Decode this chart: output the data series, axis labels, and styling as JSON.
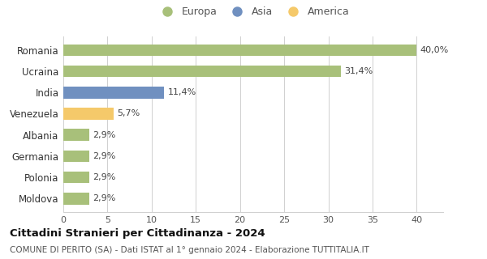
{
  "categories": [
    "Romania",
    "Ucraina",
    "India",
    "Venezuela",
    "Albania",
    "Germania",
    "Polonia",
    "Moldova"
  ],
  "values": [
    40.0,
    31.4,
    11.4,
    5.7,
    2.9,
    2.9,
    2.9,
    2.9
  ],
  "labels": [
    "40,0%",
    "31,4%",
    "11,4%",
    "5,7%",
    "2,9%",
    "2,9%",
    "2,9%",
    "2,9%"
  ],
  "bar_colors": [
    "#a8c07a",
    "#a8c07a",
    "#7090c0",
    "#f5c96a",
    "#a8c07a",
    "#a8c07a",
    "#a8c07a",
    "#a8c07a"
  ],
  "legend_labels": [
    "Europa",
    "Asia",
    "America"
  ],
  "legend_colors": [
    "#a8c07a",
    "#7090c0",
    "#f5c96a"
  ],
  "title": "Cittadini Stranieri per Cittadinanza - 2024",
  "subtitle": "COMUNE DI PERITO (SA) - Dati ISTAT al 1° gennaio 2024 - Elaborazione TUTTITALIA.IT",
  "xlim": [
    0,
    43
  ],
  "xticks": [
    0,
    5,
    10,
    15,
    20,
    25,
    30,
    35,
    40
  ],
  "background_color": "#ffffff",
  "grid_color": "#d0d0d0"
}
